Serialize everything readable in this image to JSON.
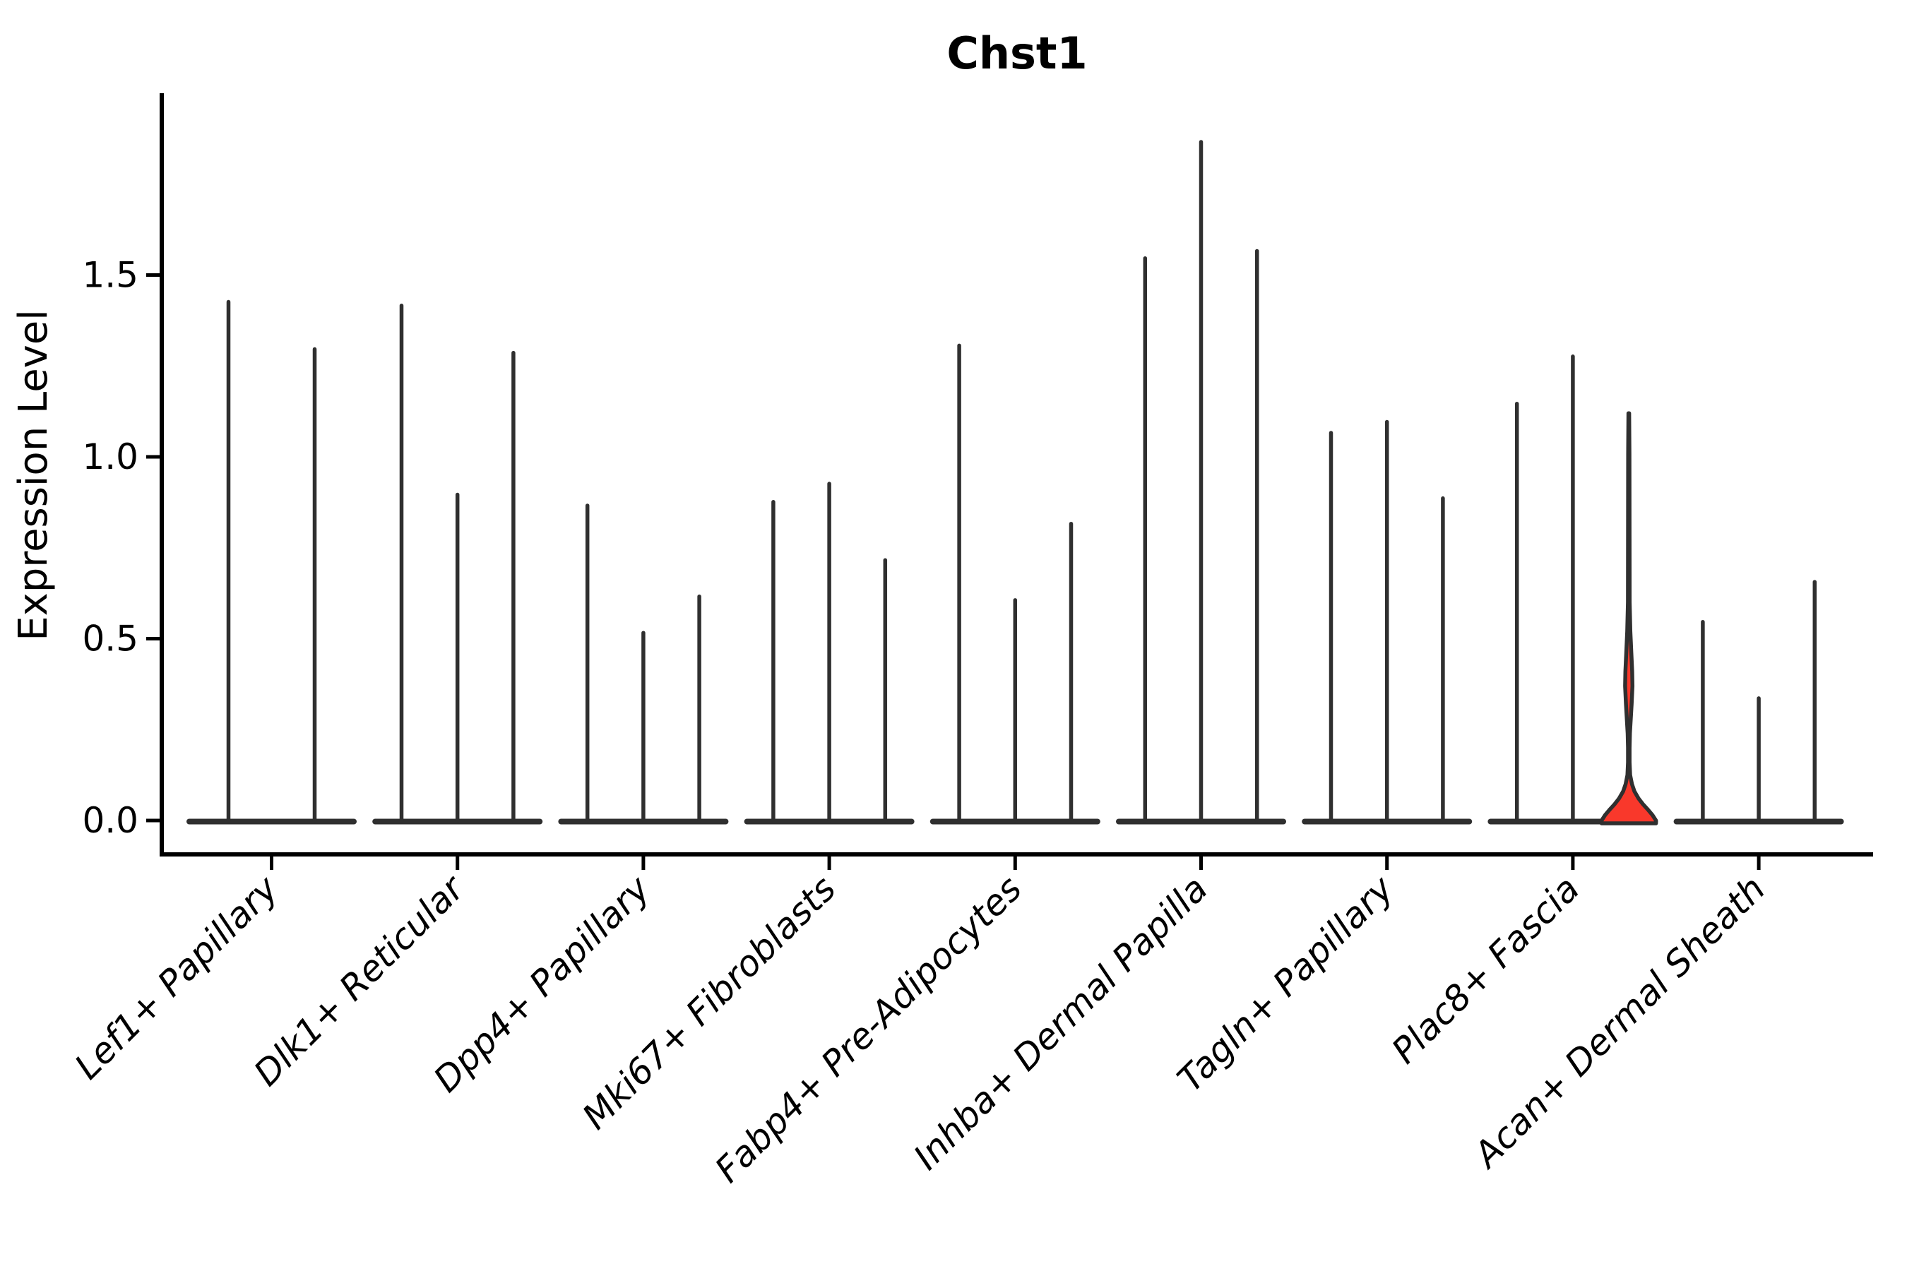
{
  "figure": {
    "title": "Chst1",
    "ylabel": "Expression Level"
  },
  "chart_data": {
    "type": "violin",
    "title": "Chst1",
    "xlabel": "",
    "ylabel": "Expression Level",
    "ylim": [
      0,
      1.97
    ],
    "yticks": [
      0,
      0.5,
      1,
      1.5
    ],
    "ytick_labels": [
      "0.0",
      "0.5",
      "1.0",
      "1.5"
    ],
    "grid": false,
    "legend": "none",
    "axis_color": "#000000",
    "violin_line_color": "#2f2f2f",
    "highlight_fill_color": "#f9382b",
    "x_labels_rotation_deg": 45,
    "description": "Violin plot of Chst1 expression; each cell-type group contains 2-3 near-zero-width violins (spikes). The third violin of Plac8+ Fascia is highlighted red with a visible density bulge and wide base.",
    "groups": [
      {
        "label": "Lef1+ Papillary",
        "violin_max_values": [
          1.43,
          1.3
        ]
      },
      {
        "label": "Dlk1+ Reticular",
        "violin_max_values": [
          1.42,
          0.9,
          1.29
        ]
      },
      {
        "label": "Dpp4+ Papillary",
        "violin_max_values": [
          0.87,
          0.52,
          0.62
        ]
      },
      {
        "label": "Mki67+ Fibroblasts",
        "violin_max_values": [
          0.88,
          0.93,
          0.72
        ]
      },
      {
        "label": "Fabp4+ Pre-Adipocytes",
        "violin_max_values": [
          1.31,
          0.61,
          0.82
        ]
      },
      {
        "label": "Inhba+ Dermal Papilla",
        "violin_max_values": [
          1.55,
          1.87,
          1.57
        ]
      },
      {
        "label": "Tagln+ Papillary",
        "violin_max_values": [
          1.07,
          1.1,
          0.89
        ]
      },
      {
        "label": "Plac8+ Fascia",
        "violin_max_values": [
          1.15,
          1.28,
          1.12
        ],
        "highlighted_violin_index": 2,
        "highlighted_violin": {
          "max": 1.12,
          "bulge_peak": 0.37,
          "bulge_range": [
            0.27,
            0.48
          ]
        }
      },
      {
        "label": "Acan+ Dermal Sheath",
        "violin_max_values": [
          0.55,
          0.34,
          0.66
        ]
      }
    ]
  }
}
